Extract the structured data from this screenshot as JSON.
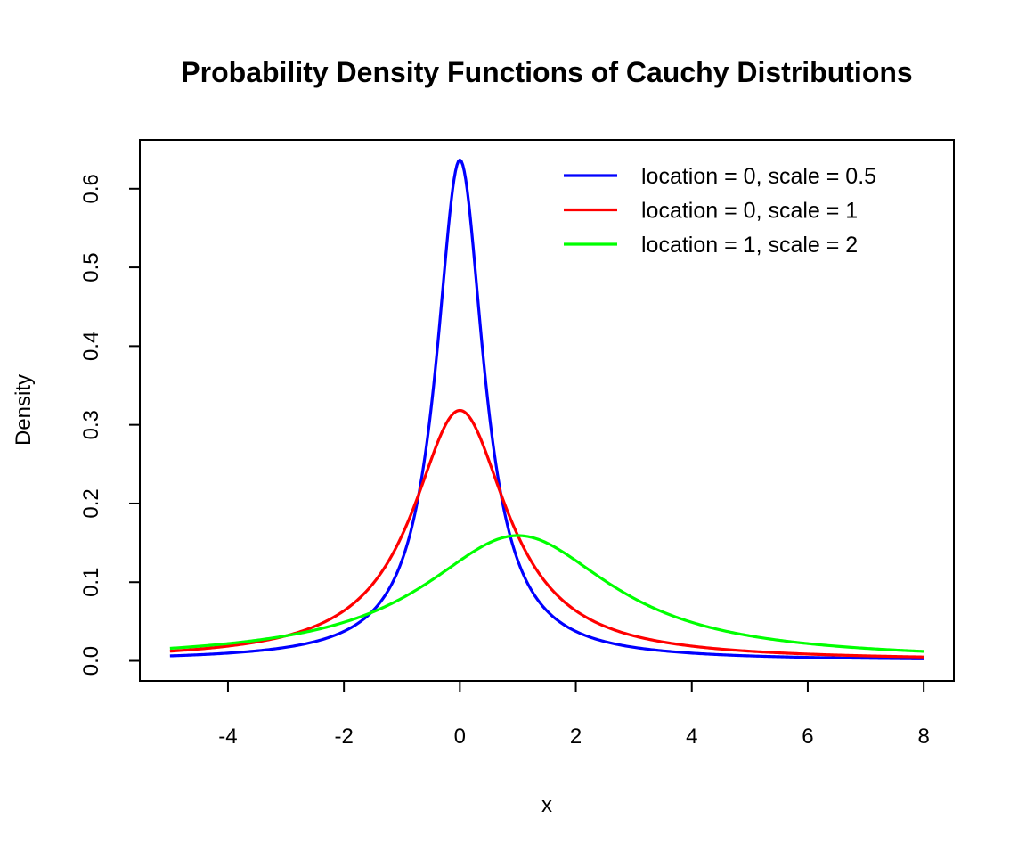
{
  "chart_data": {
    "type": "line",
    "title": "Probability Density Functions of Cauchy Distributions",
    "xlabel": "x",
    "ylabel": "Density",
    "xlim": [
      -5,
      8
    ],
    "ylim": [
      0,
      0.6366
    ],
    "xticks": [
      "-4",
      "-2",
      "0",
      "2",
      "4",
      "6",
      "8"
    ],
    "yticks": [
      "0.0",
      "0.1",
      "0.2",
      "0.3",
      "0.4",
      "0.5",
      "0.6"
    ],
    "grid": false,
    "legend_position": "top-right",
    "x": [
      -5,
      -4,
      -3,
      -2,
      -1,
      0,
      1,
      2,
      3,
      4,
      5,
      6,
      7,
      8
    ],
    "series": [
      {
        "name": "location = 0, scale = 0.5",
        "location": 0,
        "scale": 0.5,
        "color": "#0000ff",
        "values": [
          0.0063,
          0.0098,
          0.0172,
          0.0375,
          0.1273,
          0.6366,
          0.1273,
          0.0375,
          0.0172,
          0.0098,
          0.0063,
          0.0044,
          0.0032,
          0.0025
        ]
      },
      {
        "name": "location = 0, scale = 1",
        "location": 0,
        "scale": 1,
        "color": "#ff0000",
        "values": [
          0.0122,
          0.0187,
          0.0318,
          0.0637,
          0.1592,
          0.3183,
          0.1592,
          0.0637,
          0.0318,
          0.0187,
          0.0122,
          0.0086,
          0.0064,
          0.0049
        ]
      },
      {
        "name": "location = 1, scale = 2",
        "location": 1,
        "scale": 2,
        "color": "#00ff00",
        "values": [
          0.0159,
          0.022,
          0.0318,
          0.049,
          0.0796,
          0.1273,
          0.1592,
          0.1273,
          0.0796,
          0.049,
          0.0318,
          0.022,
          0.0159,
          0.012
        ]
      }
    ]
  }
}
